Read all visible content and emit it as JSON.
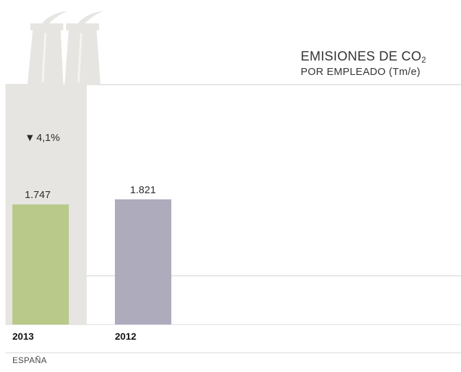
{
  "chart_data": {
    "type": "bar",
    "title": "EMISIONES DE CO",
    "title_subscript": "2",
    "subtitle": "POR EMPLEADO (Tm/e)",
    "categories": [
      "2013",
      "2012"
    ],
    "values": [
      1.747,
      1.821
    ],
    "value_labels": [
      "1.747",
      "1.821"
    ],
    "ylim": [
      0,
      3.5
    ],
    "change_label": "4,1%",
    "change_direction": "down",
    "region_label": "ESPAÑA",
    "colors": {
      "bars": [
        "#b8c98a",
        "#aeabbd"
      ],
      "factory": "#e6e5e1",
      "gridline": "#dddddd"
    },
    "icons": {
      "change": "down-triangle-icon",
      "background": "factory-icon"
    }
  }
}
